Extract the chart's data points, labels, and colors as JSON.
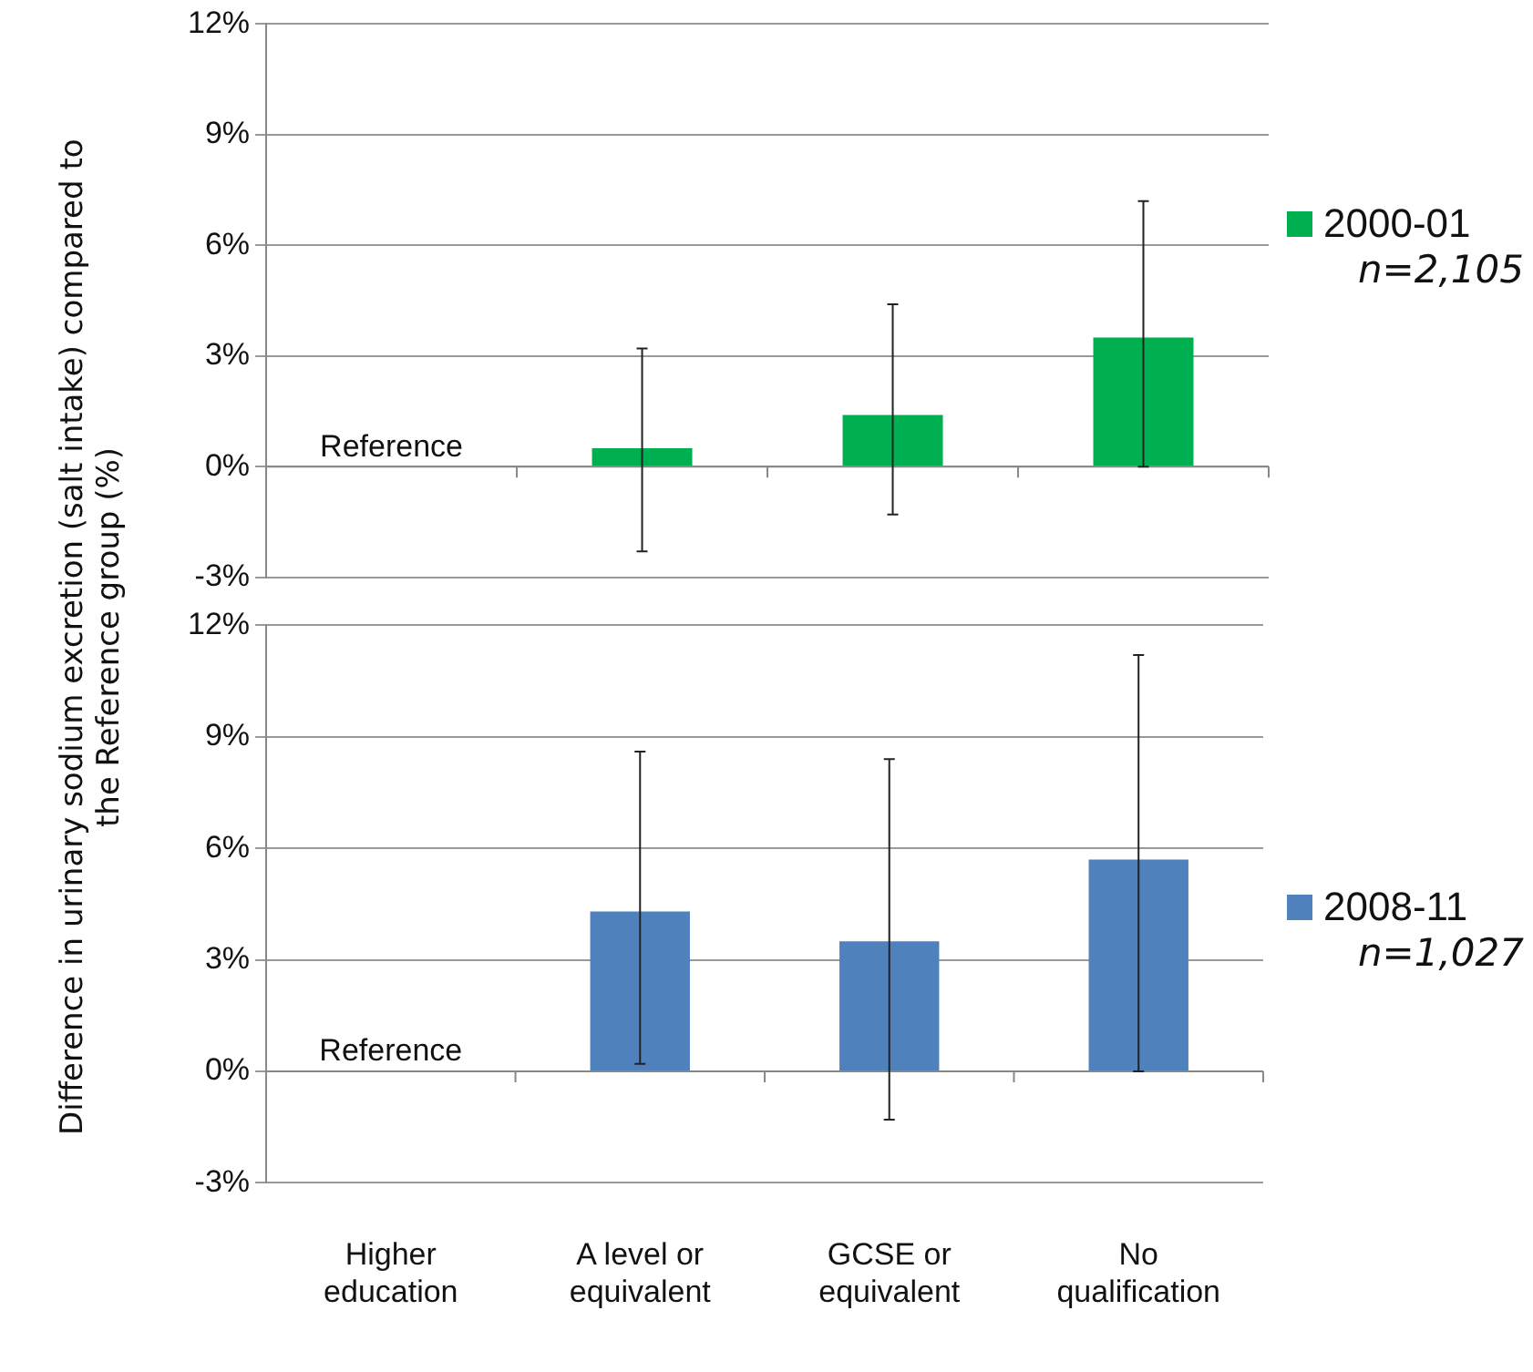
{
  "chart_data": [
    {
      "type": "bar",
      "ylabel": "Difference in urinary sodium excretion (salt intake) compared to the Reference group (%)",
      "categories": [
        null,
        null,
        null,
        null
      ],
      "series": [
        {
          "name": "2000-01",
          "color": "#00b050",
          "values": [
            null,
            0.5,
            1.4,
            3.5
          ],
          "errors": [
            null,
            [
              -2.3,
              3.2
            ],
            [
              -1.3,
              4.4
            ],
            [
              0.0,
              7.2
            ]
          ]
        }
      ],
      "ylim": [
        -3,
        12
      ],
      "yticks": [
        {
          "value": -3,
          "label": "-3%"
        },
        {
          "value": 0,
          "label": "0%"
        },
        {
          "value": 3,
          "label": "3%"
        },
        {
          "value": 6,
          "label": "6%"
        },
        {
          "value": 9,
          "label": "9%"
        },
        {
          "value": 12,
          "label": "12%"
        }
      ],
      "grid": "y",
      "legend": "right",
      "tick_labels": "y",
      "annotations": [
        "Reference",
        "n=2,105"
      ]
    },
    {
      "type": "bar",
      "categories": [
        "Higher education",
        "A level or equivalent",
        "GCSE or equivalent",
        "No qualification"
      ],
      "series": [
        {
          "name": "2008-11",
          "color": "#4f81bd",
          "values": [
            null,
            4.3,
            3.5,
            5.7
          ],
          "errors": [
            null,
            [
              0.2,
              8.6
            ],
            [
              -1.3,
              8.4
            ],
            [
              0.0,
              11.2
            ]
          ]
        }
      ],
      "ylim": [
        -3,
        12
      ],
      "yticks": [
        {
          "value": -3,
          "label": "-3%"
        },
        {
          "value": 0,
          "label": "0%"
        },
        {
          "value": 3,
          "label": "3%"
        },
        {
          "value": 6,
          "label": "6%"
        },
        {
          "value": 9,
          "label": "9%"
        },
        {
          "value": 12,
          "label": "12%"
        }
      ],
      "grid": "y",
      "legend": "right",
      "annotations": [
        "Reference",
        "n=1,027"
      ]
    }
  ]
}
